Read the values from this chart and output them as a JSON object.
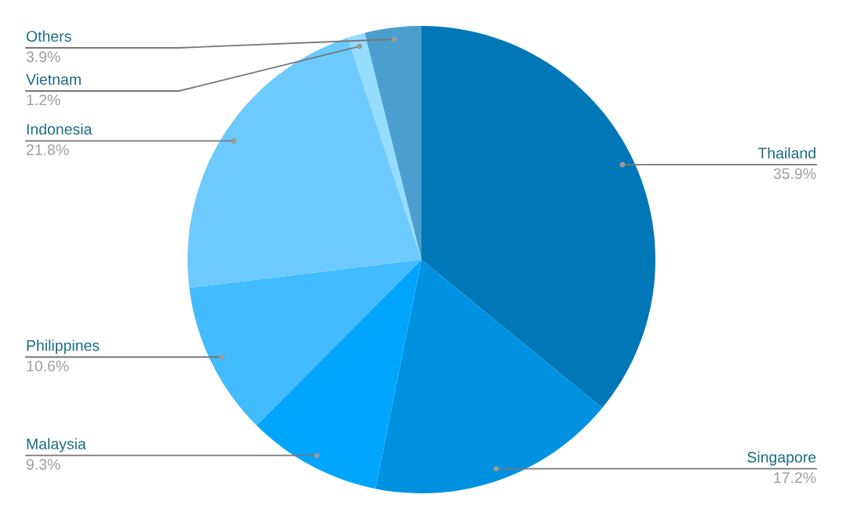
{
  "chart_data": {
    "type": "pie",
    "categories": [
      "Thailand",
      "Singapore",
      "Malaysia",
      "Philippines",
      "Indonesia",
      "Vietnam",
      "Others"
    ],
    "values": [
      35.9,
      17.2,
      9.3,
      10.6,
      21.8,
      1.2,
      3.9
    ],
    "value_labels": [
      "35.9%",
      "17.2%",
      "9.3%",
      "10.6%",
      "21.8%",
      "1.2%",
      "3.9%"
    ],
    "colors": [
      "#0077b6",
      "#0091e0",
      "#00a5ff",
      "#42bbff",
      "#6ccaff",
      "#96dcff",
      "#4a9fce"
    ]
  }
}
